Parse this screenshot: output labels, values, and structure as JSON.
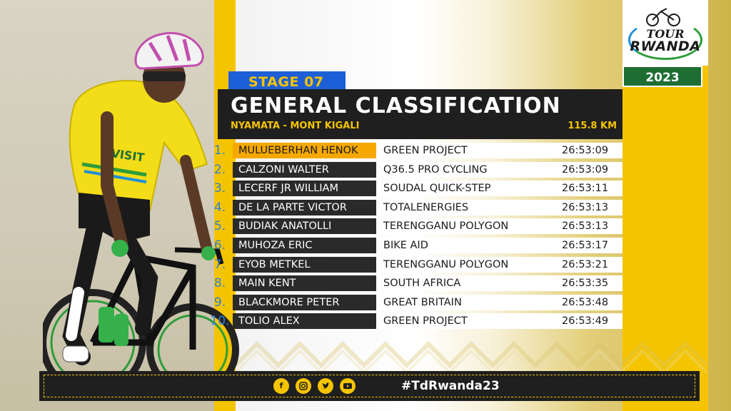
{
  "stage": {
    "label": "STAGE 07"
  },
  "header": {
    "title": "GENERAL CLASSIFICATION",
    "route": "NYAMATA - MONT KIGALI",
    "distance": "115.8 KM"
  },
  "logo": {
    "line1": "TOUR",
    "line2": "RWANDA",
    "year": "2023"
  },
  "results": [
    {
      "rank": "1.",
      "name": "MULUEBERHAN HENOK",
      "team": "GREEN PROJECT",
      "time": "26:53:09"
    },
    {
      "rank": "2.",
      "name": "CALZONI WALTER",
      "team": "Q36.5 PRO CYCLING",
      "time": "26:53:09"
    },
    {
      "rank": "3.",
      "name": "LECERF JR WILLIAM",
      "team": "SOUDAL QUICK-STEP",
      "time": "26:53:11"
    },
    {
      "rank": "4.",
      "name": "DE LA PARTE VICTOR",
      "team": "TOTALENERGIES",
      "time": "26:53:13"
    },
    {
      "rank": "5.",
      "name": "BUDIAK ANATOLLI",
      "team": "TERENGGANU POLYGON",
      "time": "26:53:13"
    },
    {
      "rank": "6.",
      "name": "MUHOZA ERIC",
      "team": "BIKE AID",
      "time": "26:53:17"
    },
    {
      "rank": "7.",
      "name": "EYOB METKEL",
      "team": "TERENGGANU POLYGON",
      "time": "26:53:21"
    },
    {
      "rank": "8.",
      "name": "MAIN KENT",
      "team": "SOUTH AFRICA",
      "time": "26:53:35"
    },
    {
      "rank": "9.",
      "name": "BLACKMORE PETER",
      "team": "GREAT BRITAIN",
      "time": "26:53:48"
    },
    {
      "rank": "10.",
      "name": "TOLIO ALEX",
      "team": "GREEN PROJECT",
      "time": "26:53:49"
    }
  ],
  "footer": {
    "hashtag": "#TdRwanda23",
    "social_icons": [
      "facebook-icon",
      "instagram-icon",
      "twitter-icon",
      "youtube-icon"
    ]
  },
  "colors": {
    "accent_yellow": "#f5c400",
    "leader_orange": "#f5a800",
    "stage_blue": "#1d5fd6",
    "panel_dark": "#1f1f1f",
    "year_green": "#1e6e34",
    "rank_blue": "#2c7fe0"
  }
}
